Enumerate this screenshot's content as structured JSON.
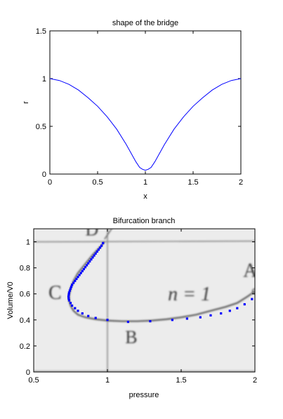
{
  "chart_data": [
    {
      "type": "line",
      "title": "shape of the bridge",
      "xlabel": "x",
      "ylabel": "r",
      "xlim": [
        0,
        2
      ],
      "ylim": [
        0,
        1.5
      ],
      "xticks": [
        0,
        0.5,
        1,
        1.5,
        2
      ],
      "xtick_labels": [
        "0",
        "0.5",
        "1",
        "1.5",
        "2"
      ],
      "yticks": [
        0,
        0.5,
        1,
        1.5
      ],
      "ytick_labels": [
        "0",
        "0.5",
        "1",
        "1.5"
      ],
      "grid": false,
      "line_color": "#0000ff",
      "series": [
        {
          "x": [
            0,
            0.1,
            0.2,
            0.3,
            0.4,
            0.5,
            0.6,
            0.7,
            0.8,
            0.85,
            0.9,
            0.94,
            0.97,
            1.0,
            1.03,
            1.06,
            1.1,
            1.15,
            1.2,
            1.3,
            1.4,
            1.5,
            1.6,
            1.7,
            1.8,
            1.9,
            2.0
          ],
          "y": [
            1.0,
            0.98,
            0.94,
            0.88,
            0.8,
            0.71,
            0.6,
            0.47,
            0.31,
            0.22,
            0.13,
            0.07,
            0.05,
            0.04,
            0.05,
            0.07,
            0.13,
            0.22,
            0.31,
            0.47,
            0.6,
            0.71,
            0.8,
            0.88,
            0.94,
            0.98,
            1.0
          ]
        }
      ]
    },
    {
      "type": "scatter",
      "title": "Bifurcation branch",
      "xlabel": "pressure",
      "ylabel": "Volume/V0",
      "xlim": [
        0.5,
        2
      ],
      "ylim": [
        0,
        1.1
      ],
      "xticks": [
        0.5,
        1,
        1.5,
        2
      ],
      "xtick_labels": [
        "0.5",
        "1",
        "1.5",
        "2"
      ],
      "yticks": [
        0,
        0.2,
        0.4,
        0.6,
        0.8,
        1
      ],
      "ytick_labels": [
        "0",
        "0.2",
        "0.4",
        "0.6",
        "0.8",
        "1"
      ],
      "grid": false,
      "marker_color": "#0000ff",
      "background_image": "scanned-figure",
      "scan_labels": {
        "D": "D",
        "C": "C",
        "B": "B",
        "A": "A",
        "n_label": "n = 1"
      },
      "scan_label_positions": {
        "D": [
          0.85,
          1.05
        ],
        "C": [
          0.6,
          0.56
        ],
        "B": [
          1.12,
          0.22
        ],
        "A": [
          1.92,
          0.73
        ],
        "n_label": [
          1.41,
          0.55
        ]
      },
      "scan_curve": {
        "x": [
          0.98,
          0.95,
          0.9,
          0.85,
          0.8,
          0.77,
          0.75,
          0.74,
          0.74,
          0.75,
          0.77,
          0.8,
          0.85,
          0.92,
          1.0,
          1.1,
          1.2,
          1.3,
          1.4,
          1.5,
          1.6,
          1.7,
          1.8,
          1.88,
          1.95,
          2.0
        ],
        "y": [
          1.0,
          0.96,
          0.9,
          0.83,
          0.76,
          0.7,
          0.64,
          0.59,
          0.55,
          0.51,
          0.47,
          0.44,
          0.42,
          0.405,
          0.395,
          0.39,
          0.39,
          0.395,
          0.405,
          0.42,
          0.44,
          0.47,
          0.5,
          0.53,
          0.58,
          0.62
        ]
      },
      "series": [
        {
          "x": [
            0.97,
            0.96,
            0.95,
            0.94,
            0.93,
            0.92,
            0.91,
            0.9,
            0.89,
            0.88,
            0.87,
            0.86,
            0.85,
            0.84,
            0.83,
            0.82,
            0.81,
            0.8,
            0.79,
            0.78,
            0.77,
            0.76,
            0.755,
            0.75,
            0.745,
            0.74,
            0.738,
            0.736,
            0.737,
            0.74,
            0.75,
            0.76,
            0.78,
            0.8,
            0.83,
            0.87,
            0.92,
            1.0,
            1.14,
            1.29,
            1.44,
            1.54,
            1.63,
            1.7,
            1.77,
            1.83,
            1.88,
            1.93,
            1.98
          ],
          "y": [
            0.99,
            0.97,
            0.955,
            0.94,
            0.925,
            0.91,
            0.895,
            0.88,
            0.865,
            0.85,
            0.835,
            0.82,
            0.805,
            0.79,
            0.775,
            0.76,
            0.745,
            0.73,
            0.715,
            0.7,
            0.685,
            0.67,
            0.655,
            0.64,
            0.625,
            0.61,
            0.595,
            0.58,
            0.565,
            0.55,
            0.53,
            0.51,
            0.49,
            0.47,
            0.45,
            0.43,
            0.415,
            0.4,
            0.385,
            0.39,
            0.4,
            0.41,
            0.42,
            0.435,
            0.45,
            0.47,
            0.49,
            0.52,
            0.56
          ]
        }
      ]
    }
  ]
}
